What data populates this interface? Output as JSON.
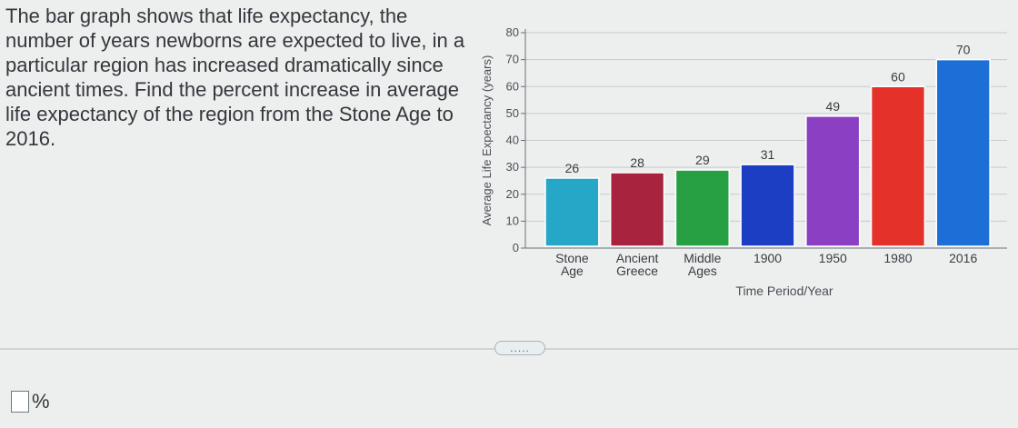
{
  "question": {
    "text": "The bar graph shows that life expectancy, the number of years newborns are expected to live, in a particular region has increased dramatically since ancient times. Find the percent increase in average life expectancy of the region from the Stone Age to 2016."
  },
  "more_button": {
    "label": "....."
  },
  "answer": {
    "value": "",
    "unit": "%"
  },
  "chart_data": {
    "type": "bar",
    "title": "",
    "xlabel": "Time Period/Year",
    "ylabel": "Average Life Expectancy (years)",
    "ylim": [
      0,
      80
    ],
    "yticks": [
      0,
      10,
      20,
      30,
      40,
      50,
      60,
      70,
      80
    ],
    "grid": true,
    "categories": [
      [
        "Stone",
        "Age"
      ],
      [
        "Ancient",
        "Greece"
      ],
      [
        "Middle",
        "Ages"
      ],
      [
        "1900"
      ],
      [
        "1950"
      ],
      [
        "1980"
      ],
      [
        "2016"
      ]
    ],
    "values": [
      26,
      28,
      29,
      31,
      49,
      60,
      70
    ],
    "colors": [
      "#27a7c7",
      "#a8233d",
      "#27a043",
      "#1c3ec2",
      "#8b3fc2",
      "#e4322b",
      "#1b6fd6"
    ]
  }
}
